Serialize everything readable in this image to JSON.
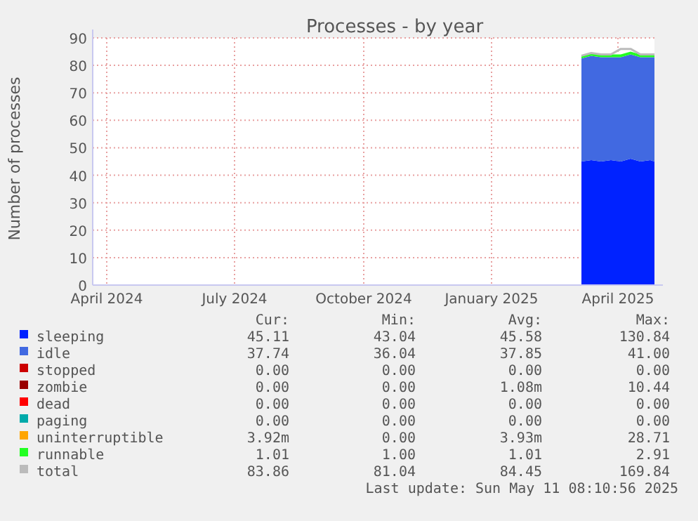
{
  "chart_data": {
    "type": "area",
    "title": "Processes - by year",
    "ylabel": "Number of processes",
    "stacked": true,
    "grid": true,
    "legend": "bottom",
    "x": [
      "2025-03-20",
      "2025-03-27",
      "2025-04-03",
      "2025-04-10",
      "2025-04-17",
      "2025-04-24",
      "2025-05-01",
      "2025-05-08",
      "2025-05-11"
    ],
    "xlim": [
      "2024-04-06",
      "2025-05-11"
    ],
    "xticks": [
      {
        "value": "2024-04-16",
        "label": "April 2024"
      },
      {
        "value": "2024-07-16",
        "label": "July 2024"
      },
      {
        "value": "2024-10-16",
        "label": "October 2024"
      },
      {
        "value": "2025-01-15",
        "label": "January 2025"
      },
      {
        "value": "2025-04-15",
        "label": "April 2025"
      }
    ],
    "ylim": [
      0,
      90
    ],
    "yticks": [
      0,
      10,
      20,
      30,
      40,
      50,
      60,
      70,
      80,
      90
    ],
    "series": [
      {
        "name": "sleeping",
        "color": "#0022ff",
        "values": [
          45,
          45.5,
          45,
          45.5,
          45,
          46,
          45,
          45.5,
          45
        ]
      },
      {
        "name": "idle",
        "color": "#4169e1",
        "values": [
          37.5,
          38,
          38,
          37.5,
          38,
          38,
          38,
          37.5,
          38
        ]
      },
      {
        "name": "stopped",
        "color": "#cc0000",
        "values": [
          null,
          null,
          null,
          null,
          null,
          null,
          null,
          null,
          null
        ]
      },
      {
        "name": "zombie",
        "color": "#990000",
        "values": [
          null,
          null,
          null,
          null,
          null,
          null,
          null,
          null,
          null
        ]
      },
      {
        "name": "dead",
        "color": "#ff0000",
        "values": [
          null,
          null,
          null,
          null,
          null,
          null,
          null,
          null,
          null
        ]
      },
      {
        "name": "paging",
        "color": "#00aaaa",
        "values": [
          null,
          null,
          null,
          null,
          null,
          null,
          null,
          null,
          null
        ]
      },
      {
        "name": "uninterruptible",
        "color": "#ffa500",
        "values": [
          null,
          null,
          null,
          null,
          null,
          null,
          null,
          null,
          null
        ]
      },
      {
        "name": "runnable",
        "color": "#22ff22",
        "values": [
          1,
          1,
          1,
          1,
          1,
          1,
          1,
          1,
          1
        ]
      },
      {
        "name": "total",
        "color": "#bbbbbb",
        "type": "line",
        "values": [
          83.5,
          84.5,
          84,
          84,
          86,
          86,
          84,
          84,
          84
        ]
      }
    ],
    "annotations": [
      "Cur:",
      "Min:",
      "Avg:",
      "Max:",
      "45.11",
      "43.04",
      "45.58",
      "130.84",
      "37.74",
      "36.04",
      "37.85",
      "41.00",
      "0.00",
      "0.00",
      "0.00",
      "0.00",
      "0.00",
      "0.00",
      "1.08m",
      "10.44",
      "0.00",
      "0.00",
      "0.00",
      "0.00",
      "0.00",
      "0.00",
      "0.00",
      "0.00",
      "3.92m",
      "0.00",
      "3.93m",
      "28.71",
      "1.01",
      "1.00",
      "1.01",
      "2.91",
      "83.86",
      "81.04",
      "84.45",
      "169.84",
      "Last update: Sun May 11 08:10:56 2025"
    ]
  }
}
